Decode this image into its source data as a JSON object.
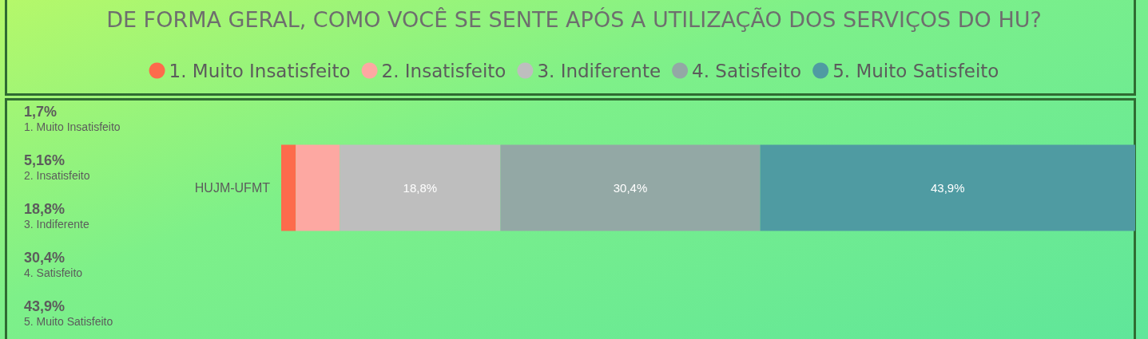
{
  "chart_data": {
    "type": "bar",
    "title": "DE FORMA GERAL, COMO VOCÊ SE SENTE APÓS A UTILIZAÇÃO DOS SERVIÇOS DO HU?",
    "orientation": "horizontal",
    "stacked": true,
    "legend": "top",
    "categories": [
      "HUJM-UFMT"
    ],
    "series": [
      {
        "name": "1. Muito Insatisfeito",
        "color": "#fd6b4c",
        "values": [
          1.7
        ],
        "value_labels": [
          null
        ]
      },
      {
        "name": "2. Insatisfeito",
        "color": "#fda8a2",
        "values": [
          5.16
        ],
        "value_labels": [
          null
        ]
      },
      {
        "name": "3. Indiferente",
        "color": "#bebebe",
        "values": [
          18.8
        ],
        "value_labels": [
          "18,8%"
        ]
      },
      {
        "name": "4. Satisfeito",
        "color": "#93a8a5",
        "values": [
          30.4
        ],
        "value_labels": [
          "30,4%"
        ]
      },
      {
        "name": "5. Muito Satisfeito",
        "color": "#4f9ba2",
        "values": [
          43.9
        ],
        "value_labels": [
          "43,9%"
        ]
      }
    ],
    "annotations": [
      "1,7%",
      "1. Muito Insatisfeito",
      "5,16%",
      "2. Insatisfeito",
      "18,8%",
      "3. Indiferente",
      "30,4%",
      "4. Satisfeito",
      "43,9%",
      "5. Muito Satisfeito"
    ]
  }
}
